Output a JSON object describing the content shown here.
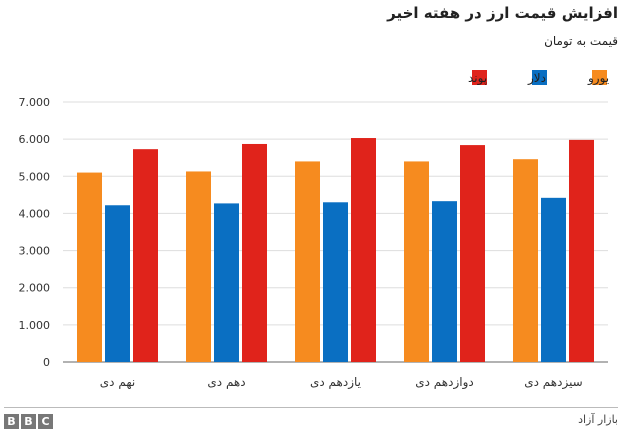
{
  "colors": {
    "euro": "#f68b1f",
    "dollar": "#0a6fc2",
    "pound": "#e0231b"
  },
  "source": "بازار آزاد",
  "logo": [
    "B",
    "B",
    "C"
  ],
  "chart_data": {
    "type": "bar",
    "title": "افزایش قیمت ارز در هفته اخیر",
    "subtitle": "قیمت به تومان",
    "categories": [
      "نهم دی",
      "دهم دی",
      "یازدهم دی",
      "دوازدهم دی",
      "سیزدهم دی"
    ],
    "series": [
      {
        "name": "یورو",
        "color": "#f68b1f",
        "values": [
          5100,
          5130,
          5400,
          5400,
          5460
        ]
      },
      {
        "name": "دلار",
        "color": "#0a6fc2",
        "values": [
          4220,
          4270,
          4300,
          4330,
          4420
        ]
      },
      {
        "name": "پوند",
        "color": "#e0231b",
        "values": [
          5730,
          5870,
          6030,
          5840,
          5980
        ]
      }
    ],
    "ylim": [
      0,
      7000
    ],
    "yticks": [
      0,
      1000,
      2000,
      3000,
      4000,
      5000,
      6000,
      7000
    ],
    "ytick_labels": [
      "0",
      "1.000",
      "2.000",
      "3.000",
      "4.000",
      "5.000",
      "6.000",
      "7.000"
    ],
    "grid": true,
    "legend_position": "top-right"
  }
}
